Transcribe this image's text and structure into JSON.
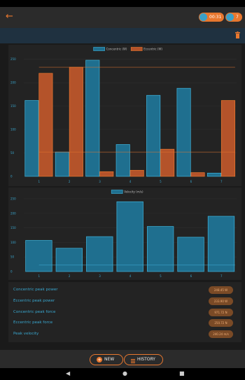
{
  "header": {
    "back_icon": "back-arrow-icon",
    "timer": "00:31",
    "counter": "7"
  },
  "colors": {
    "accent": "#e8772e",
    "concentric": "#2d8cb0",
    "eccentric": "#c5582a"
  },
  "chart_data": [
    {
      "type": "bar",
      "categories": [
        "1",
        "2",
        "3",
        "4",
        "5",
        "6",
        "7"
      ],
      "series": [
        {
          "name": "Concentric (W)",
          "values": [
            162,
            52,
            248,
            68,
            173,
            188,
            7
          ]
        },
        {
          "name": "Eccentric (W)",
          "values": [
            220,
            233,
            10,
            13,
            58,
            8,
            162
          ]
        }
      ],
      "reference_lines": [
        {
          "series": "Eccentric (W)",
          "value": 233
        },
        {
          "series": "Eccentric (W)",
          "value": 52
        }
      ],
      "yticks": [
        0,
        50,
        100,
        150,
        200,
        250
      ],
      "ylim": [
        0,
        260
      ],
      "legend": "top"
    },
    {
      "type": "bar",
      "categories": [
        "1",
        "2",
        "3",
        "4",
        "5",
        "6",
        "7"
      ],
      "series": [
        {
          "name": "Velocity (m/s)",
          "values": [
            107,
            80,
            120,
            240,
            155,
            118,
            190
          ]
        }
      ],
      "reference_lines": [
        {
          "series": "Velocity (m/s)",
          "value": 22
        }
      ],
      "yticks": [
        0,
        50,
        100,
        150,
        200,
        250
      ],
      "ylim": [
        0,
        255
      ],
      "legend": "top"
    }
  ],
  "summary": [
    {
      "label": "Concentric peak power",
      "value": "248.45 W"
    },
    {
      "label": "Eccentric peak power",
      "value": "233.90 W"
    },
    {
      "label": "Concentric peak force",
      "value": "971.72 N"
    },
    {
      "label": "Eccentric peak force",
      "value": "250.72 N"
    },
    {
      "label": "Peak velocity",
      "value": "240.24 m/s"
    }
  ],
  "actions": {
    "new_label": "NEW",
    "history_label": "HISTORY"
  }
}
